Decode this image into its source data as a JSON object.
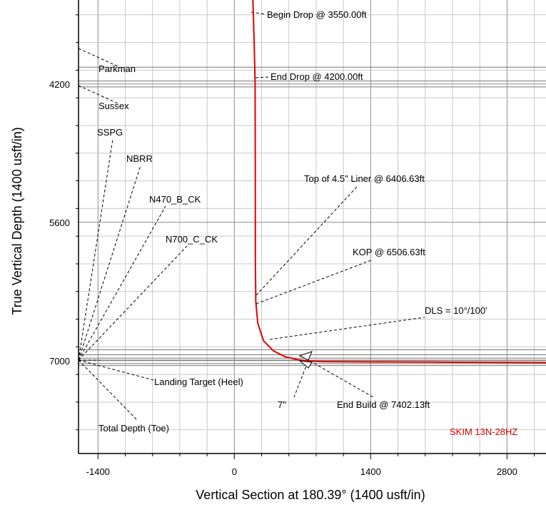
{
  "chart_data": {
    "type": "line",
    "xlabel": "Vertical Section at 180.39° (1400 usft/in)",
    "ylabel": "True Vertical Depth (1400 usft/in)",
    "xlim": [
      -1600,
      3200
    ],
    "ylim": [
      7940,
      3350
    ],
    "x_ticks": [
      -1400,
      0,
      1400,
      2800
    ],
    "x_tick_labels": [
      "-1400",
      "0",
      "1400",
      "2800"
    ],
    "y_ticks": [
      4200,
      5600,
      7000
    ],
    "y_tick_labels": [
      "4200",
      "5600",
      "7000"
    ],
    "grid": true,
    "well_name": "SKIM 13N-28HZ",
    "well_color": "#e00000",
    "wellpath": {
      "vs": [
        190,
        197,
        204,
        210,
        213,
        215,
        216,
        220,
        240,
        300,
        400,
        520,
        650,
        780,
        900,
        1200,
        2000,
        3000,
        3200
      ],
      "tvd": [
        3350,
        3550,
        3800,
        4050,
        4200,
        5000,
        6000,
        6400,
        6620,
        6800,
        6900,
        6960,
        6990,
        7005,
        7010,
        7012,
        7015,
        7019,
        7020
      ]
    },
    "formation_tops": [
      {
        "name": "Parkman",
        "tvd": 4030
      },
      {
        "name": "Sussex",
        "tvd": 4230
      },
      {
        "name": "SSPG",
        "tvd": null
      },
      {
        "name": "NBRR",
        "tvd": null
      },
      {
        "name": "N470_B_CK",
        "tvd": null
      },
      {
        "name": "N700_C_CK",
        "tvd": null
      },
      {
        "name": "Landing Target (Heel)",
        "tvd": 7030
      },
      {
        "name": "Total Depth (Toe)",
        "tvd": 7050
      }
    ],
    "annotations": [
      "Begin Drop @ 3550.00ft",
      "End Drop @ 4200.00ft",
      "Top of 4.5\" Liner @ 6406.63ft",
      "KOP @ 6506.63ft",
      "DLS = 10°/100'",
      "End Build @ 7402.13ft",
      "7\""
    ]
  }
}
